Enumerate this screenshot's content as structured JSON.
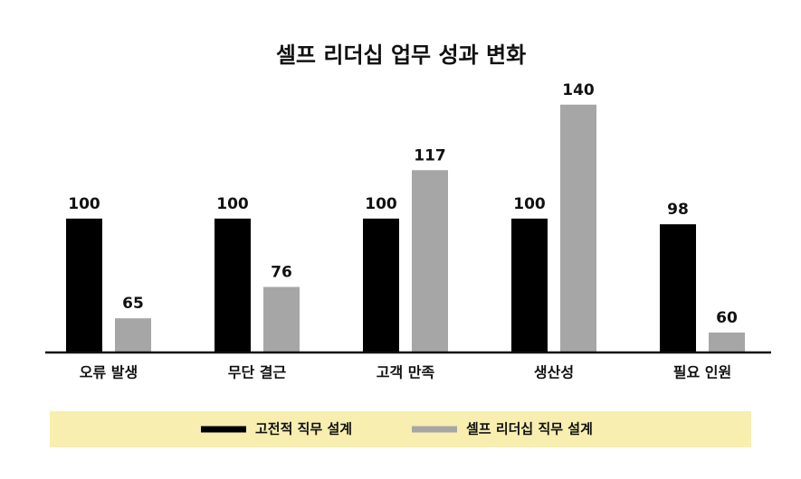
{
  "chart_data": {
    "type": "bar",
    "title": "셀프 리더십 업무 성과 변화",
    "categories": [
      "오류 발생",
      "무단 결근",
      "고객 만족",
      "생산성",
      "필요 인원"
    ],
    "series": [
      {
        "name": "고전적 직무 설계",
        "color": "#000000",
        "values": [
          100,
          100,
          100,
          100,
          98
        ]
      },
      {
        "name": "셀프 리더십 직무 설계",
        "color": "#a6a6a6",
        "values": [
          65,
          76,
          117,
          140,
          60
        ]
      }
    ],
    "ylim": [
      53,
      145
    ],
    "legend_color": "#f7eeb0"
  }
}
